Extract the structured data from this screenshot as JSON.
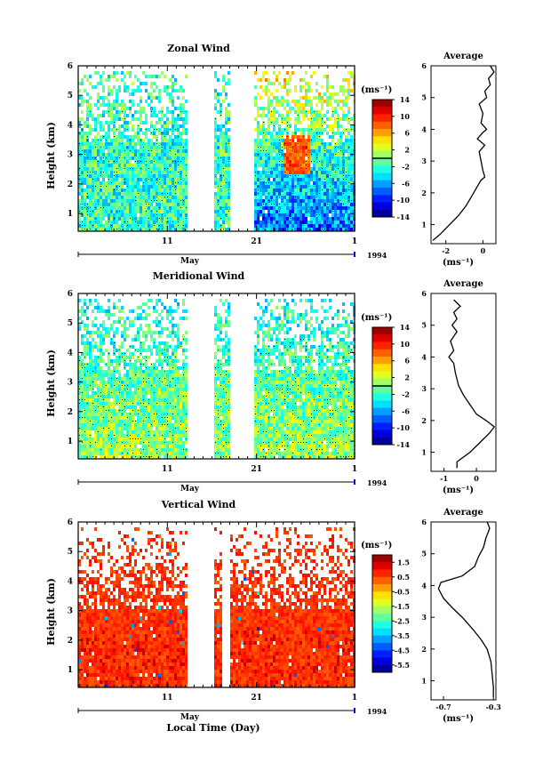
{
  "figure": {
    "year_label": "1994",
    "bottom_xlabel": "Local Time (Day)"
  },
  "chart_data": [
    {
      "type": "heatmap",
      "title": "Zonal Wind",
      "ylabel": "Height (km)",
      "yticks": [
        "1",
        "2",
        "3",
        "4",
        "5",
        "6"
      ],
      "ylim": [
        0.4,
        6.0
      ],
      "xticks": [
        "11",
        "21",
        "1"
      ],
      "xlabel": "May",
      "colorbar": {
        "unit": "(ms⁻¹)",
        "range": [
          -14,
          14
        ],
        "tick_values": [
          14,
          10,
          6,
          2,
          -2,
          -6,
          -10,
          -14
        ],
        "tick_labels": [
          "14",
          "10",
          "6",
          "2",
          "-2",
          "-6",
          "-10",
          "-14"
        ],
        "zero_line": true
      },
      "data_gaps": [
        [
          13.0,
          16.0
        ],
        [
          18.0,
          20.5
        ]
      ],
      "average_profile": {
        "title": "Average",
        "xlabel": "(ms⁻¹)",
        "xticks": [
          -2,
          0
        ],
        "xtick_labels": [
          "-2",
          "0"
        ],
        "xlim": [
          -2.8,
          0.7
        ],
        "height": [
          0.5,
          0.7,
          1.0,
          1.3,
          1.6,
          1.9,
          2.2,
          2.4,
          2.5,
          2.7,
          3.0,
          3.3,
          3.5,
          3.7,
          3.9,
          4.0,
          4.2,
          4.5,
          4.8,
          5.0,
          5.2,
          5.4,
          5.6,
          5.8,
          6.0
        ],
        "value": [
          -2.7,
          -2.3,
          -1.8,
          -1.3,
          -0.9,
          -0.6,
          -0.3,
          -0.1,
          0.1,
          0.0,
          -0.1,
          -0.2,
          0.1,
          -0.3,
          0.0,
          0.2,
          -0.1,
          0.0,
          -0.2,
          0.2,
          0.1,
          0.4,
          0.3,
          0.6,
          0.4
        ]
      }
    },
    {
      "type": "heatmap",
      "title": "Meridional Wind",
      "ylabel": "Height (km)",
      "yticks": [
        "1",
        "2",
        "3",
        "4",
        "5",
        "6"
      ],
      "ylim": [
        0.4,
        6.0
      ],
      "xticks": [
        "11",
        "21",
        "1"
      ],
      "xlabel": "May",
      "colorbar": {
        "unit": "(ms⁻¹)",
        "range": [
          -14,
          14
        ],
        "tick_values": [
          14,
          10,
          6,
          2,
          -2,
          -6,
          -10,
          -14
        ],
        "tick_labels": [
          "14",
          "10",
          "6",
          "2",
          "-2",
          "-6",
          "-10",
          "-14"
        ],
        "zero_line": true
      },
      "data_gaps": [
        [
          13.0,
          16.0
        ],
        [
          18.0,
          20.5
        ]
      ],
      "average_profile": {
        "title": "Average",
        "xlabel": "(ms⁻¹)",
        "xticks": [
          -1,
          0
        ],
        "xtick_labels": [
          "-1",
          "0"
        ],
        "xlim": [
          -1.4,
          0.6
        ],
        "height": [
          0.5,
          0.7,
          1.0,
          1.3,
          1.6,
          1.8,
          2.0,
          2.2,
          2.5,
          2.8,
          3.1,
          3.5,
          3.8,
          4.0,
          4.2,
          4.5,
          4.8,
          5.0,
          5.2,
          5.4,
          5.6,
          5.8
        ],
        "value": [
          -0.6,
          -0.6,
          -0.2,
          0.1,
          0.4,
          0.55,
          0.3,
          0.0,
          -0.2,
          -0.4,
          -0.55,
          -0.65,
          -0.7,
          -0.85,
          -0.7,
          -0.8,
          -0.6,
          -0.75,
          -0.6,
          -0.7,
          -0.5,
          -0.7
        ]
      }
    },
    {
      "type": "heatmap",
      "title": "Vertical Wind",
      "ylabel": "Height (km)",
      "yticks": [
        "1",
        "2",
        "3",
        "4",
        "5",
        "6"
      ],
      "ylim": [
        0.4,
        6.0
      ],
      "xticks": [
        "11",
        "21",
        "1"
      ],
      "xlabel": "May",
      "colorbar": {
        "unit": "(ms⁻¹)",
        "range": [
          -6.0,
          2.0
        ],
        "tick_values": [
          1.5,
          0.5,
          -0.5,
          -1.5,
          -2.5,
          -3.5,
          -4.5,
          -5.5
        ],
        "tick_labels": [
          "1.5",
          "0.5",
          "-0.5",
          "-1.5",
          "-2.5",
          "-3.5",
          "-4.5",
          "-5.5"
        ],
        "zero_line": false
      },
      "data_gaps": [
        [
          13.0,
          16.0
        ],
        [
          17.0,
          18.0
        ]
      ],
      "average_profile": {
        "title": "Average",
        "xlabel": "(ms⁻¹)",
        "xticks": [
          -0.7,
          -0.3
        ],
        "xtick_labels": [
          "-0.7",
          "-0.3"
        ],
        "xlim": [
          -0.8,
          -0.28
        ],
        "height": [
          0.5,
          0.8,
          1.2,
          1.6,
          2.0,
          2.3,
          2.6,
          3.0,
          3.3,
          3.6,
          3.9,
          4.1,
          4.3,
          4.6,
          4.9,
          5.2,
          5.5,
          5.8,
          6.0
        ],
        "value": [
          -0.3,
          -0.3,
          -0.31,
          -0.32,
          -0.35,
          -0.4,
          -0.46,
          -0.55,
          -0.63,
          -0.7,
          -0.74,
          -0.72,
          -0.55,
          -0.45,
          -0.42,
          -0.38,
          -0.36,
          -0.33,
          -0.35
        ]
      }
    }
  ]
}
